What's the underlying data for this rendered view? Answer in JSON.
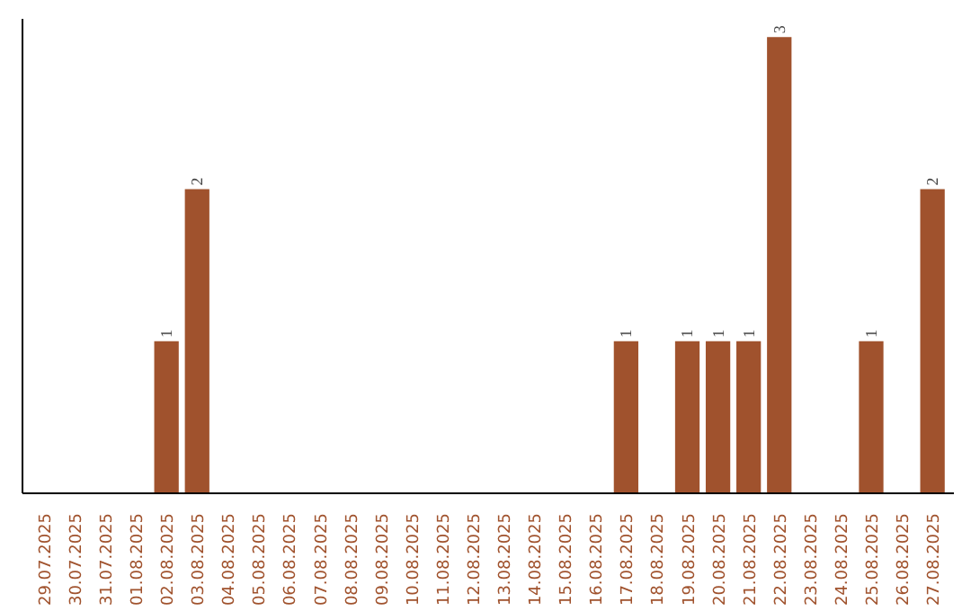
{
  "chart_data": {
    "type": "bar",
    "categories": [
      "29.07.2025",
      "30.07.2025",
      "31.07.2025",
      "01.08.2025",
      "02.08.2025",
      "03.08.2025",
      "04.08.2025",
      "05.08.2025",
      "06.08.2025",
      "07.08.2025",
      "08.08.2025",
      "09.08.2025",
      "10.08.2025",
      "11.08.2025",
      "12.08.2025",
      "13.08.2025",
      "14.08.2025",
      "15.08.2025",
      "16.08.2025",
      "17.08.2025",
      "18.08.2025",
      "19.08.2025",
      "20.08.2025",
      "21.08.2025",
      "22.08.2025",
      "23.08.2025",
      "24.08.2025",
      "25.08.2025",
      "26.08.2025",
      "27.08.2025"
    ],
    "values": [
      0,
      0,
      0,
      0,
      1,
      2,
      0,
      0,
      0,
      0,
      0,
      0,
      0,
      0,
      0,
      0,
      0,
      0,
      0,
      1,
      0,
      1,
      1,
      1,
      3,
      0,
      0,
      1,
      0,
      2
    ],
    "value_labels": [
      null,
      null,
      null,
      null,
      "1",
      "2",
      null,
      null,
      null,
      null,
      null,
      null,
      null,
      null,
      null,
      null,
      null,
      null,
      null,
      "1",
      null,
      "1",
      "1",
      "1",
      "3",
      null,
      null,
      "1",
      null,
      "2"
    ],
    "color": "#a0522d",
    "ylim": [
      0,
      3.12
    ],
    "tick_labels": "x",
    "grid": false
  }
}
